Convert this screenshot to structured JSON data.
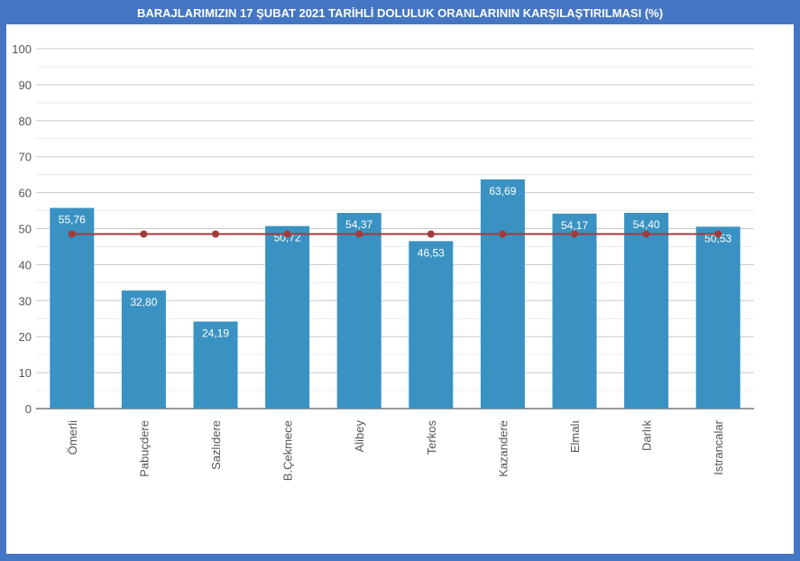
{
  "chart_data": {
    "type": "bar",
    "title": "BARAJLARIMIZIN 17 ŞUBAT 2021 TARİHLİ DOLULUK ORANLARININ KARŞILAŞTIRILMASI (%)",
    "categories": [
      "Ömerli",
      "Pabuçdere",
      "Sazlıdere",
      "B.Çekmece",
      "Alibey",
      "Terkos",
      "Kazandere",
      "Elmalı",
      "Darlık",
      "Istrancalar"
    ],
    "values": [
      55.76,
      32.8,
      24.19,
      50.72,
      54.37,
      46.53,
      63.69,
      54.17,
      54.4,
      50.53
    ],
    "value_labels": [
      "55,76",
      "32,80",
      "24,19",
      "50,72",
      "54,37",
      "46,53",
      "63,69",
      "54,17",
      "54,40",
      "50,53"
    ],
    "average_line": {
      "value": 48.5,
      "color": "#a33a3a"
    },
    "bar_color": "#3a92c2",
    "ylim": [
      0,
      100
    ],
    "yticks": [
      "0",
      "10",
      "20",
      "30",
      "40",
      "50",
      "60",
      "70",
      "80",
      "90",
      "100"
    ],
    "grid": true,
    "xlabel": "",
    "ylabel": ""
  }
}
